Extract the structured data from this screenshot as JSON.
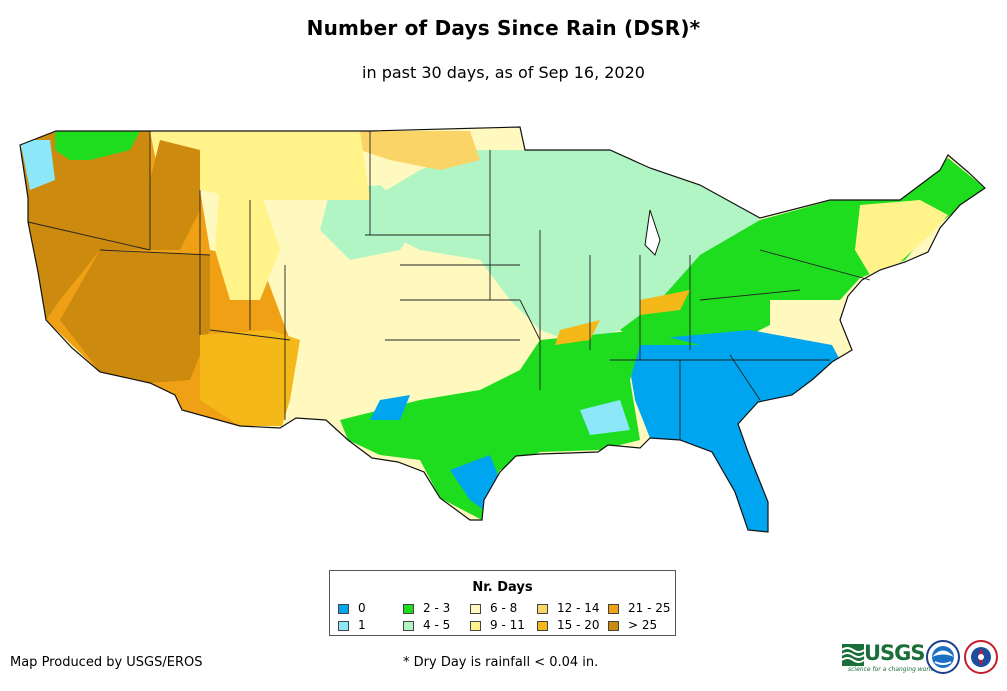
{
  "title": "Number of Days Since Rain (DSR)*",
  "subtitle": "in past 30 days, as of Sep 16, 2020",
  "legend": {
    "title": "Nr. Days",
    "items": [
      {
        "label": "0",
        "color": "#00a5f0"
      },
      {
        "label": "1",
        "color": "#8ce8f8"
      },
      {
        "label": "2 - 3",
        "color": "#1edc1e"
      },
      {
        "label": "4 - 5",
        "color": "#b2f5c4"
      },
      {
        "label": "6 - 8",
        "color": "#fff9c0"
      },
      {
        "label": "9 - 11",
        "color": "#fff38a"
      },
      {
        "label": "12 - 14",
        "color": "#fbd468"
      },
      {
        "label": "15 - 20",
        "color": "#f5b819"
      },
      {
        "label": "21 - 25",
        "color": "#f0a014"
      },
      {
        "label": "> 25",
        "color": "#cc8a0e"
      }
    ]
  },
  "credit": "Map Produced by USGS/EROS",
  "footnote": "* Dry Day is rainfall < 0.04 in.",
  "logos": {
    "usgs_text": "USGS",
    "usgs_tagline": "science for a changing world",
    "seals": [
      "noaa-seal-icon",
      "weather-service-seal-icon"
    ]
  }
}
